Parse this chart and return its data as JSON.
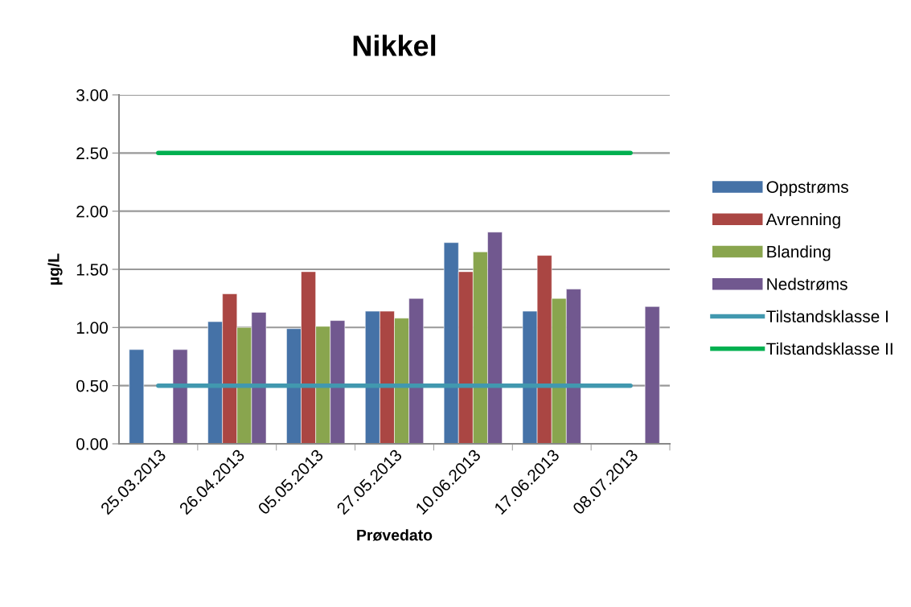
{
  "chart_data": {
    "type": "bar",
    "title": "Nikkel",
    "xlabel": "Prøvedato",
    "ylabel": "µg/L",
    "categories": [
      "25.03.2013",
      "26.04.2013",
      "05.05.2013",
      "27.05.2013",
      "10.06.2013",
      "17.06.2013",
      "08.07.2013"
    ],
    "series": [
      {
        "name": "Oppstrøms",
        "color": "#4572a7",
        "values": [
          0.81,
          1.05,
          0.99,
          1.14,
          1.73,
          1.14,
          null
        ]
      },
      {
        "name": "Avrenning",
        "color": "#aa4643",
        "values": [
          null,
          1.29,
          1.48,
          1.14,
          1.48,
          1.62,
          null
        ]
      },
      {
        "name": "Blanding",
        "color": "#89a54e",
        "values": [
          null,
          1.0,
          1.01,
          1.08,
          1.65,
          1.25,
          null
        ]
      },
      {
        "name": "Nedstrøms",
        "color": "#71588f",
        "values": [
          0.81,
          1.13,
          1.06,
          1.25,
          1.82,
          1.33,
          1.18
        ]
      },
      {
        "name": "Tilstandsklasse I",
        "type": "line",
        "color": "#4198af",
        "values": [
          0.5,
          0.5,
          0.5,
          0.5,
          0.5,
          0.5,
          0.5
        ]
      },
      {
        "name": "Tilstandsklasse II",
        "type": "line",
        "color": "#00b050",
        "values": [
          2.5,
          2.5,
          2.5,
          2.5,
          2.5,
          2.5,
          2.5
        ]
      }
    ],
    "ylim": [
      0,
      3
    ],
    "yticks": [
      {
        "value": 0,
        "label": "0.00"
      },
      {
        "value": 0.5,
        "label": "0.50"
      },
      {
        "value": 1,
        "label": "1.00"
      },
      {
        "value": 1.5,
        "label": "1.50"
      },
      {
        "value": 2,
        "label": "2.00"
      },
      {
        "value": 2.5,
        "label": "2.50"
      },
      {
        "value": 3,
        "label": "3.00"
      }
    ],
    "grid": "y",
    "legend": "right",
    "marker": "none",
    "line_style": "solid"
  }
}
